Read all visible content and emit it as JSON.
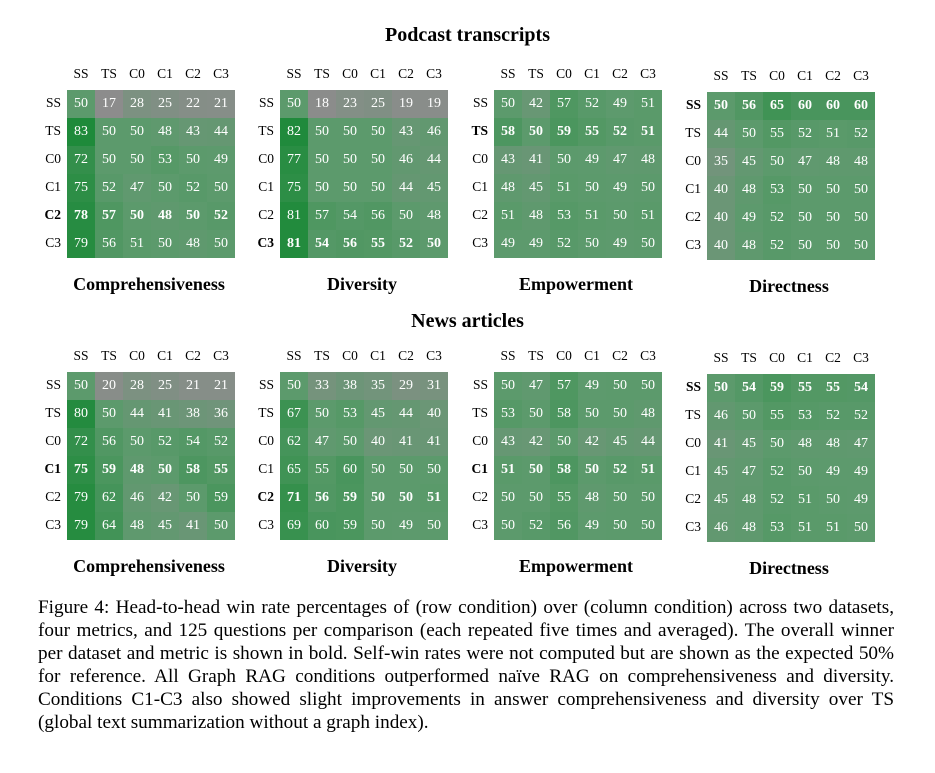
{
  "conditions": [
    "SS",
    "TS",
    "C0",
    "C1",
    "C2",
    "C3"
  ],
  "sections": [
    {
      "title": "Podcast transcripts",
      "panels": [
        {
          "metric": "Comprehensiveness",
          "bold_row": 4,
          "values": [
            [
              50,
              17,
              28,
              25,
              22,
              21
            ],
            [
              83,
              50,
              50,
              48,
              43,
              44
            ],
            [
              72,
              50,
              50,
              53,
              50,
              49
            ],
            [
              75,
              52,
              47,
              50,
              52,
              50
            ],
            [
              78,
              57,
              50,
              48,
              50,
              52
            ],
            [
              79,
              56,
              51,
              50,
              48,
              50
            ]
          ]
        },
        {
          "metric": "Diversity",
          "bold_row": 5,
          "values": [
            [
              50,
              18,
              23,
              25,
              19,
              19
            ],
            [
              82,
              50,
              50,
              50,
              43,
              46
            ],
            [
              77,
              50,
              50,
              50,
              46,
              44
            ],
            [
              75,
              50,
              50,
              50,
              44,
              45
            ],
            [
              81,
              57,
              54,
              56,
              50,
              48
            ],
            [
              81,
              54,
              56,
              55,
              52,
              50
            ]
          ]
        },
        {
          "metric": "Empowerment",
          "bold_row": 1,
          "values": [
            [
              50,
              42,
              57,
              52,
              49,
              51
            ],
            [
              58,
              50,
              59,
              55,
              52,
              51
            ],
            [
              43,
              41,
              50,
              49,
              47,
              48
            ],
            [
              48,
              45,
              51,
              50,
              49,
              50
            ],
            [
              51,
              48,
              53,
              51,
              50,
              51
            ],
            [
              49,
              49,
              52,
              50,
              49,
              50
            ]
          ]
        },
        {
          "metric": "Directness",
          "bold_row": 0,
          "values": [
            [
              50,
              56,
              65,
              60,
              60,
              60
            ],
            [
              44,
              50,
              55,
              52,
              51,
              52
            ],
            [
              35,
              45,
              50,
              47,
              48,
              48
            ],
            [
              40,
              48,
              53,
              50,
              50,
              50
            ],
            [
              40,
              49,
              52,
              50,
              50,
              50
            ],
            [
              40,
              48,
              52,
              50,
              50,
              50
            ]
          ]
        }
      ]
    },
    {
      "title": "News articles",
      "panels": [
        {
          "metric": "Comprehensiveness",
          "bold_row": 3,
          "values": [
            [
              50,
              20,
              28,
              25,
              21,
              21
            ],
            [
              80,
              50,
              44,
              41,
              38,
              36
            ],
            [
              72,
              56,
              50,
              52,
              54,
              52
            ],
            [
              75,
              59,
              48,
              50,
              58,
              55
            ],
            [
              79,
              62,
              46,
              42,
              50,
              59
            ],
            [
              79,
              64,
              48,
              45,
              41,
              50
            ]
          ]
        },
        {
          "metric": "Diversity",
          "bold_row": 4,
          "values": [
            [
              50,
              33,
              38,
              35,
              29,
              31
            ],
            [
              67,
              50,
              53,
              45,
              44,
              40
            ],
            [
              62,
              47,
              50,
              40,
              41,
              41
            ],
            [
              65,
              55,
              60,
              50,
              50,
              50
            ],
            [
              71,
              56,
              59,
              50,
              50,
              51
            ],
            [
              69,
              60,
              59,
              50,
              49,
              50
            ]
          ]
        },
        {
          "metric": "Empowerment",
          "bold_row": 3,
          "values": [
            [
              50,
              47,
              57,
              49,
              50,
              50
            ],
            [
              53,
              50,
              58,
              50,
              50,
              48
            ],
            [
              43,
              42,
              50,
              42,
              45,
              44
            ],
            [
              51,
              50,
              58,
              50,
              52,
              51
            ],
            [
              50,
              50,
              55,
              48,
              50,
              50
            ],
            [
              50,
              52,
              56,
              49,
              50,
              50
            ]
          ]
        },
        {
          "metric": "Directness",
          "bold_row": 0,
          "values": [
            [
              50,
              54,
              59,
              55,
              55,
              54
            ],
            [
              46,
              50,
              55,
              53,
              52,
              52
            ],
            [
              41,
              45,
              50,
              48,
              48,
              47
            ],
            [
              45,
              47,
              52,
              50,
              49,
              49
            ],
            [
              45,
              48,
              52,
              51,
              50,
              49
            ],
            [
              46,
              48,
              53,
              51,
              51,
              50
            ]
          ]
        }
      ]
    }
  ],
  "caption": "Figure 4: Head-to-head win rate percentages of (row condition) over (column condition) across two datasets, four metrics, and 125 questions per comparison (each repeated five times and averaged). The overall winner per dataset and metric is shown in bold. Self-win rates were not computed but are shown as the expected 50% for reference. All Graph RAG conditions outperformed naïve RAG on comprehensiveness and diversity. Conditions C1-C3 also showed slight improvements in answer comprehensiveness and diversity over TS (global text summarization without a graph index).",
  "colors": {
    "high": "#1e8a3a",
    "mid": "#5c9a6c",
    "low": "#8c8c8c"
  }
}
